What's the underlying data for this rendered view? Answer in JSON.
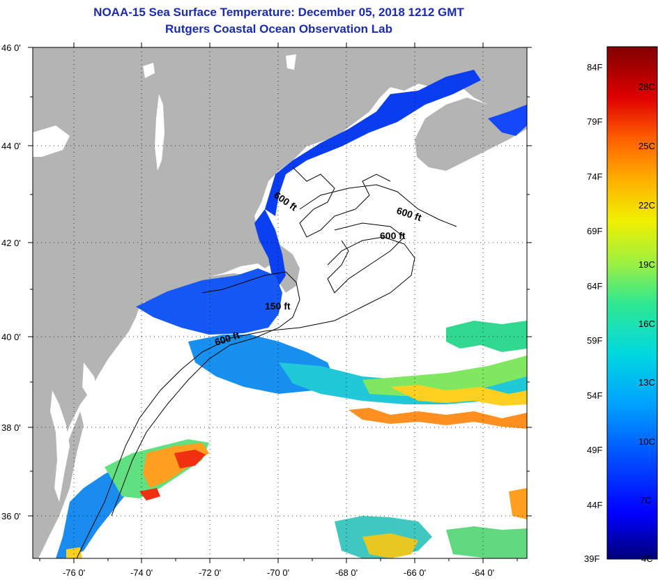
{
  "header": {
    "title": "NOAA-15 Sea Surface Temperature:  December 05, 2018 1212 GMT",
    "subtitle": "Rutgers Coastal Ocean Observation Lab"
  },
  "map": {
    "latitude_labels": [
      "46 0'",
      "44 0'",
      "42 0'",
      "40 0'",
      "38 0'",
      "36 0'"
    ],
    "longitude_labels": [
      "-76 0'",
      "-74 0'",
      "-72 0'",
      "-70 0'",
      "-68 0'",
      "-66 0'",
      "-64 0'"
    ],
    "contour_labels": [
      "600 ft",
      "600 ft",
      "600 ft",
      "150 ft",
      "600 ft"
    ],
    "land_color": "#b4b4b4",
    "water_color": "#ffffff"
  },
  "colorbar": {
    "fahrenheit_labels": [
      "84F",
      "79F",
      "74F",
      "69F",
      "64F",
      "59F",
      "54F",
      "49F",
      "44F",
      "39F"
    ],
    "celsius_labels": [
      "28C",
      "25C",
      "22C",
      "19C",
      "16C",
      "13C",
      "10C",
      "7C",
      "4C"
    ],
    "colors": [
      "#00007a",
      "#0000ff",
      "#0050ff",
      "#00a0ff",
      "#00d8e0",
      "#30e890",
      "#a0f040",
      "#f0f000",
      "#ffb000",
      "#ff6000",
      "#e00000",
      "#800000"
    ]
  }
}
